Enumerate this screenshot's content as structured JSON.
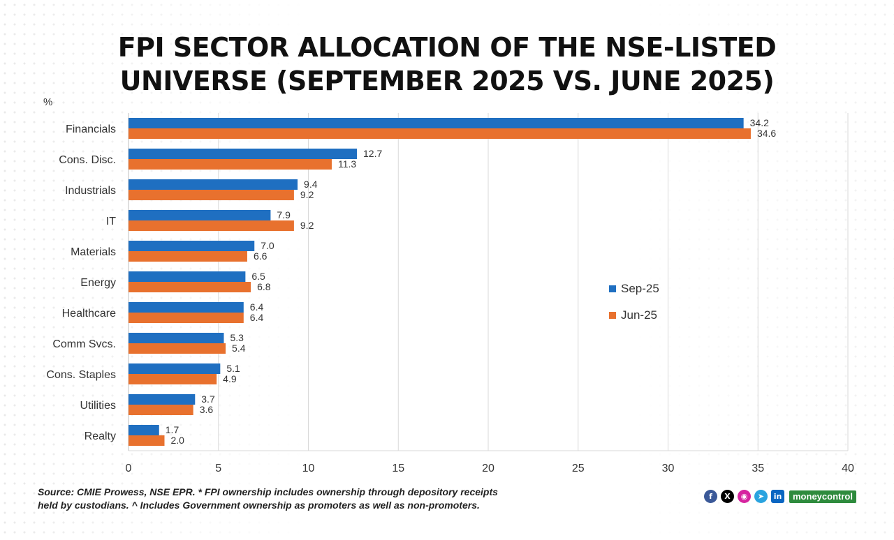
{
  "header": {
    "title_line1": "FPI SECTOR ALLOCATION OF THE NSE-LISTED",
    "title_line2": "UNIVERSE (SEPTEMBER 2025 VS. JUNE 2025)"
  },
  "unit_label": "%",
  "chart_data": {
    "type": "bar",
    "orientation": "horizontal",
    "categories": [
      "Financials",
      "Cons. Disc.",
      "Industrials",
      "IT",
      "Materials",
      "Energy",
      "Healthcare",
      "Comm Svcs.",
      "Cons. Staples",
      "Utilities",
      "Realty"
    ],
    "series": [
      {
        "name": "Sep-25",
        "color": "#1f6fc1",
        "values": [
          34.2,
          12.7,
          9.4,
          7.9,
          7.0,
          6.5,
          6.4,
          5.3,
          5.1,
          3.7,
          1.7
        ]
      },
      {
        "name": "Jun-25",
        "color": "#e8712e",
        "values": [
          34.6,
          11.3,
          9.2,
          9.2,
          6.6,
          6.8,
          6.4,
          5.4,
          4.9,
          3.6,
          2.0
        ]
      }
    ],
    "value_labels": [
      [
        "34.2",
        "12.7",
        "9.4",
        "7.9",
        "7.0",
        "6.5",
        "6.4",
        "5.3",
        "5.1",
        "3.7",
        "1.7"
      ],
      [
        "34.6",
        "11.3",
        "9.2",
        "9.2",
        "6.6",
        "6.8",
        "6.4",
        "5.4",
        "4.9",
        "3.6",
        "2.0"
      ]
    ],
    "xlim": [
      0,
      40
    ],
    "xticks": [
      "0",
      "5",
      "10",
      "15",
      "20",
      "25",
      "30",
      "35",
      "40"
    ],
    "grid": true,
    "legend_position": "right"
  },
  "footnote": {
    "line1": "Source: CMIE Prowess, NSE EPR. * FPI ownership includes ownership through depository receipts",
    "line2": "held by custodians. ^ Includes Government ownership as promoters as well as non-promoters."
  },
  "branding": {
    "social_icons": [
      "facebook-icon",
      "x-icon",
      "instagram-icon",
      "telegram-icon",
      "linkedin-icon"
    ],
    "logo_text": "moneycontrol"
  }
}
